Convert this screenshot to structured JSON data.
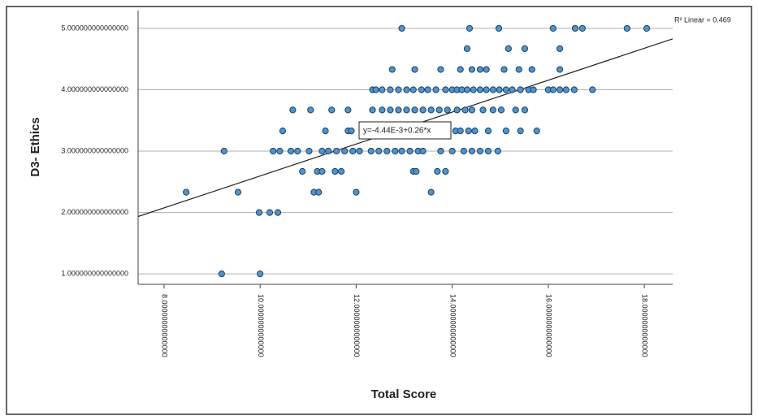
{
  "chart_data": {
    "type": "scatter",
    "x_label": "Total Score",
    "y_label": "D3- Ethics",
    "fit": {
      "label": "y=-4.44E-3+0.26*x",
      "intercept": -0.00444,
      "slope": 0.26,
      "r2_label": "R² Linear = 0.469"
    },
    "xlim": [
      7.46,
      18.59
    ],
    "ylim": [
      0.83,
      5.29
    ],
    "xticks": [
      {
        "value": 8,
        "label": "8.00000000000000"
      },
      {
        "value": 10,
        "label": "10.0000000000000"
      },
      {
        "value": 12,
        "label": "12.0000000000000"
      },
      {
        "value": 14,
        "label": "14.0000000000000"
      },
      {
        "value": 16,
        "label": "16.0000000000000"
      },
      {
        "value": 18,
        "label": "18.0000000000000"
      }
    ],
    "yticks": [
      {
        "value": 1,
        "label": "1.000000000000000"
      },
      {
        "value": 2,
        "label": "2.000000000000000"
      },
      {
        "value": 3,
        "label": "3.000000000000000"
      },
      {
        "value": 4,
        "label": "4.000000000000000"
      },
      {
        "value": 5,
        "label": "5.000000000000000"
      }
    ],
    "grid": true,
    "color": "#4f94cd",
    "edgecolor": "#1b3f63",
    "x": [
      12.95,
      14.36,
      14.97,
      16.1,
      16.56,
      16.71,
      17.64,
      18.05,
      14.31,
      15.17,
      15.51,
      16.24,
      12.75,
      13.22,
      13.76,
      14.17,
      14.41,
      14.58,
      14.71,
      15.08,
      15.39,
      15.66,
      16.24,
      12.34,
      12.41,
      12.54,
      12.71,
      12.88,
      13.05,
      13.19,
      13.36,
      13.49,
      13.66,
      13.86,
      14.0,
      14.1,
      14.2,
      14.31,
      14.44,
      14.58,
      14.71,
      14.85,
      14.98,
      15.12,
      15.25,
      15.42,
      15.59,
      15.69,
      16.0,
      16.1,
      16.24,
      16.37,
      16.54,
      16.92,
      10.68,
      11.05,
      11.49,
      11.83,
      12.34,
      12.54,
      12.71,
      12.88,
      13.05,
      13.22,
      13.39,
      13.56,
      13.73,
      13.9,
      14.1,
      14.27,
      14.41,
      14.64,
      14.85,
      15.02,
      15.32,
      15.51,
      10.47,
      11.36,
      11.83,
      11.9,
      12.17,
      12.41,
      12.68,
      13.05,
      13.39,
      13.73,
      14.07,
      14.17,
      14.34,
      14.47,
      14.75,
      15.12,
      15.42,
      15.76,
      9.25,
      10.27,
      10.41,
      10.64,
      10.78,
      11.02,
      11.29,
      11.42,
      11.59,
      11.76,
      11.93,
      12.07,
      12.31,
      12.47,
      12.64,
      12.81,
      12.95,
      13.12,
      13.29,
      13.39,
      13.76,
      14.0,
      14.24,
      14.41,
      14.58,
      14.75,
      14.95,
      10.88,
      11.19,
      11.29,
      11.56,
      11.69,
      13.19,
      13.25,
      13.69,
      13.86,
      8.46,
      9.54,
      11.12,
      11.22,
      12.0,
      13.56,
      9.98,
      10.2,
      10.37,
      9.2,
      10.0
    ],
    "values": [
      5,
      5,
      5,
      5,
      5,
      5,
      5,
      5,
      4.67,
      4.67,
      4.67,
      4.67,
      4.33,
      4.33,
      4.33,
      4.33,
      4.33,
      4.33,
      4.33,
      4.33,
      4.33,
      4.33,
      4.33,
      4,
      4,
      4,
      4,
      4,
      4,
      4,
      4,
      4,
      4,
      4,
      4,
      4,
      4,
      4,
      4,
      4,
      4,
      4,
      4,
      4,
      4,
      4,
      4,
      4,
      4,
      4,
      4,
      4,
      4,
      4,
      3.67,
      3.67,
      3.67,
      3.67,
      3.67,
      3.67,
      3.67,
      3.67,
      3.67,
      3.67,
      3.67,
      3.67,
      3.67,
      3.67,
      3.67,
      3.67,
      3.67,
      3.67,
      3.67,
      3.67,
      3.67,
      3.67,
      3.33,
      3.33,
      3.33,
      3.33,
      3.33,
      3.33,
      3.33,
      3.33,
      3.33,
      3.33,
      3.33,
      3.33,
      3.33,
      3.33,
      3.33,
      3.33,
      3.33,
      3.33,
      3,
      3,
      3,
      3,
      3,
      3,
      3,
      3,
      3,
      3,
      3,
      3,
      3,
      3,
      3,
      3,
      3,
      3,
      3,
      3,
      3,
      3,
      3,
      3,
      3,
      3,
      3,
      2.67,
      2.67,
      2.67,
      2.67,
      2.67,
      2.67,
      2.67,
      2.67,
      2.67,
      2.33,
      2.33,
      2.33,
      2.33,
      2.33,
      2.33,
      2,
      2,
      2,
      1,
      1
    ]
  }
}
